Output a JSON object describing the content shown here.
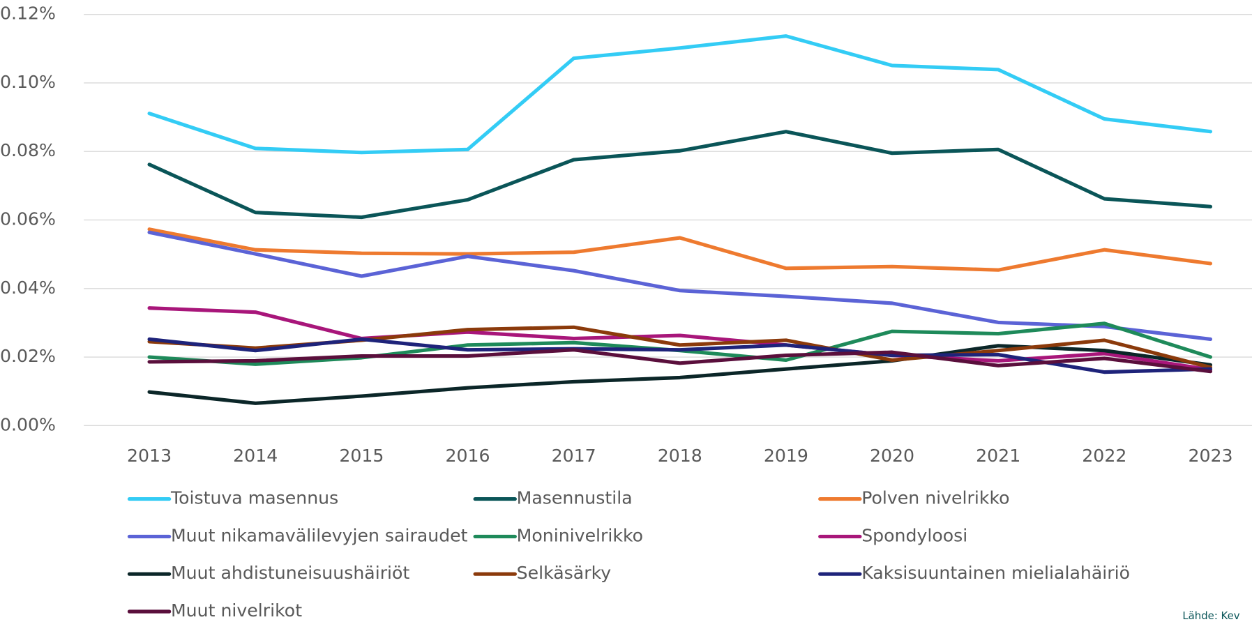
{
  "chart_data": {
    "type": "line",
    "categories": [
      "2013",
      "2014",
      "2015",
      "2016",
      "2017",
      "2018",
      "2019",
      "2020",
      "2021",
      "2022",
      "2023"
    ],
    "ylim": [
      0,
      0.12
    ],
    "yticks": [
      {
        "value": 0,
        "label": "0.00%"
      },
      {
        "value": 0.02,
        "label": "0.02%"
      },
      {
        "value": 0.04,
        "label": "0.04%"
      },
      {
        "value": 0.06,
        "label": "0.06%"
      },
      {
        "value": 0.08,
        "label": "0.08%"
      },
      {
        "value": 0.1,
        "label": "0.10%"
      },
      {
        "value": 0.12,
        "label": "0.12%"
      }
    ],
    "grid": true,
    "legend": "bottom",
    "source": "Lähde: Kev",
    "series": [
      {
        "name": "Toistuva masennus",
        "color": "#33ccf5",
        "values": [
          0.0911,
          0.0809,
          0.0797,
          0.0806,
          0.1072,
          0.1102,
          0.1137,
          0.1051,
          0.1039,
          0.0895,
          0.0858
        ]
      },
      {
        "name": "Masennustila",
        "color": "#0a5558",
        "values": [
          0.0762,
          0.0622,
          0.0608,
          0.0659,
          0.0776,
          0.0802,
          0.0858,
          0.0795,
          0.0806,
          0.0662,
          0.0639
        ]
      },
      {
        "name": "Polven nivelrikko",
        "color": "#ee7a2f",
        "values": [
          0.0573,
          0.0513,
          0.0503,
          0.0501,
          0.0506,
          0.0548,
          0.0459,
          0.0464,
          0.0454,
          0.0513,
          0.0473
        ]
      },
      {
        "name": "Muut nikamavälilevyjen sairaudet",
        "color": "#5b63d6",
        "values": [
          0.0564,
          0.0501,
          0.0436,
          0.0494,
          0.0452,
          0.0394,
          0.0377,
          0.0357,
          0.0301,
          0.0289,
          0.0252
        ]
      },
      {
        "name": "Moninivelrikko",
        "color": "#1e8a5a",
        "values": [
          0.02,
          0.0179,
          0.0198,
          0.0235,
          0.0242,
          0.0219,
          0.0191,
          0.0275,
          0.0268,
          0.0298,
          0.02
        ]
      },
      {
        "name": "Spondyloosi",
        "color": "#a8167a",
        "values": [
          0.0343,
          0.0331,
          0.0254,
          0.0273,
          0.0254,
          0.0263,
          0.0235,
          0.0205,
          0.0189,
          0.021,
          0.0163
        ]
      },
      {
        "name": "Muut ahdistuneisuushäiriöt",
        "color": "#0b2628",
        "values": [
          0.0098,
          0.0065,
          0.0086,
          0.011,
          0.0128,
          0.014,
          0.0165,
          0.0189,
          0.0233,
          0.0219,
          0.0177
        ]
      },
      {
        "name": "Selkäsärky",
        "color": "#8b3a0b",
        "values": [
          0.0245,
          0.0226,
          0.0249,
          0.028,
          0.0287,
          0.0235,
          0.0249,
          0.0191,
          0.0219,
          0.0249,
          0.017
        ]
      },
      {
        "name": "Kaksisuuntainen mielialahäiriö",
        "color": "#1e237a",
        "values": [
          0.0252,
          0.0219,
          0.0252,
          0.0221,
          0.0224,
          0.0221,
          0.0235,
          0.0205,
          0.0207,
          0.0156,
          0.0165
        ]
      },
      {
        "name": "Muut nivelrikot",
        "color": "#5a0f3c",
        "values": [
          0.0186,
          0.0189,
          0.0203,
          0.0203,
          0.0221,
          0.0182,
          0.0205,
          0.0214,
          0.0175,
          0.0196,
          0.0158
        ]
      }
    ]
  }
}
